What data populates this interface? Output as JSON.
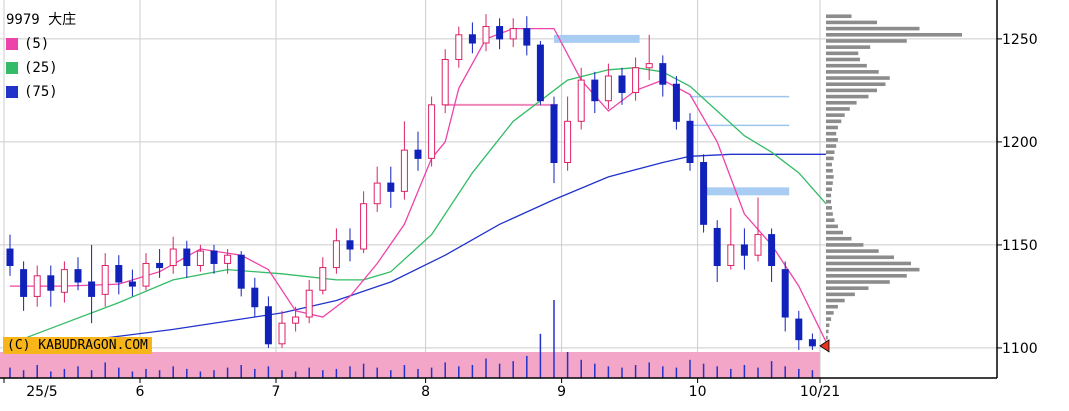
{
  "title": "9979 大庄",
  "legend": [
    {
      "label": "(5)",
      "color": "#ee44aa"
    },
    {
      "label": "(25)",
      "color": "#33bb66"
    },
    {
      "label": "(75)",
      "color": "#2233cc"
    }
  ],
  "copyright": "(C) KABUDRAGON.COM",
  "colors": {
    "up": "#dd2266",
    "down": "#1122bb",
    "ma5": "#ee44aa",
    "ma25": "#33bb66",
    "ma75": "#2233cc",
    "grid": "#cccccc",
    "volume": "#2233cc",
    "volume_band": "#f4a6c8",
    "profile": "#8c8c8c",
    "marker": "#e8321e"
  },
  "chart_data": {
    "type": "candlestick",
    "y_ticks": [
      "1100",
      "1150",
      "1200",
      "1250"
    ],
    "ylim": [
      1082,
      1265
    ],
    "x_tick_labels": [
      "25/5",
      "6",
      "7",
      "8",
      "9",
      "10",
      "10/21"
    ],
    "x_tick_days": [
      0,
      10,
      20,
      31,
      41,
      51,
      60
    ],
    "sessions": 60,
    "last_close": 1101,
    "marker_price": 1101,
    "ma5": [
      [
        0,
        1130
      ],
      [
        4,
        1130
      ],
      [
        8,
        1131
      ],
      [
        11,
        1137
      ],
      [
        14,
        1148
      ],
      [
        17,
        1145
      ],
      [
        19,
        1138
      ],
      [
        21,
        1118
      ],
      [
        23,
        1115
      ],
      [
        25,
        1125
      ],
      [
        27,
        1141
      ],
      [
        29,
        1160
      ],
      [
        31,
        1192
      ],
      [
        32,
        1200
      ],
      [
        33,
        1226
      ],
      [
        35,
        1250
      ],
      [
        37,
        1255
      ],
      [
        40,
        1255
      ],
      [
        42,
        1230
      ],
      [
        44,
        1215
      ],
      [
        46,
        1225
      ],
      [
        48,
        1230
      ],
      [
        50,
        1223
      ],
      [
        52,
        1200
      ],
      [
        54,
        1165
      ],
      [
        56,
        1150
      ],
      [
        58,
        1130
      ],
      [
        60,
        1103
      ]
    ],
    "ma25": [
      [
        0,
        1102
      ],
      [
        4,
        1112
      ],
      [
        8,
        1122
      ],
      [
        12,
        1133
      ],
      [
        16,
        1138
      ],
      [
        20,
        1136
      ],
      [
        24,
        1133
      ],
      [
        26,
        1133
      ],
      [
        28,
        1137
      ],
      [
        31,
        1155
      ],
      [
        34,
        1185
      ],
      [
        37,
        1210
      ],
      [
        39,
        1220
      ],
      [
        41,
        1230
      ],
      [
        44,
        1235
      ],
      [
        46,
        1236
      ],
      [
        48,
        1234
      ],
      [
        50,
        1227
      ],
      [
        52,
        1215
      ],
      [
        54,
        1203
      ],
      [
        56,
        1195
      ],
      [
        58,
        1185
      ],
      [
        60,
        1170
      ]
    ],
    "ma75": [
      [
        0,
        1098
      ],
      [
        6,
        1104
      ],
      [
        12,
        1109
      ],
      [
        16,
        1113
      ],
      [
        20,
        1117
      ],
      [
        24,
        1123
      ],
      [
        28,
        1132
      ],
      [
        32,
        1145
      ],
      [
        36,
        1160
      ],
      [
        40,
        1172
      ],
      [
        44,
        1183
      ],
      [
        48,
        1190
      ],
      [
        50,
        1193
      ],
      [
        53,
        1194
      ],
      [
        56,
        1194
      ],
      [
        60,
        1194
      ]
    ],
    "candles": [
      {
        "o": 1148,
        "c": 1140,
        "h": 1155,
        "l": 1135
      },
      {
        "o": 1138,
        "c": 1125,
        "h": 1142,
        "l": 1118
      },
      {
        "o": 1125,
        "c": 1135,
        "h": 1140,
        "l": 1120
      },
      {
        "o": 1135,
        "c": 1128,
        "h": 1140,
        "l": 1120
      },
      {
        "o": 1127,
        "c": 1138,
        "h": 1142,
        "l": 1122
      },
      {
        "o": 1138,
        "c": 1132,
        "h": 1144,
        "l": 1128
      },
      {
        "o": 1132,
        "c": 1125,
        "h": 1150,
        "l": 1112
      },
      {
        "o": 1126,
        "c": 1140,
        "h": 1146,
        "l": 1120
      },
      {
        "o": 1140,
        "c": 1132,
        "h": 1145,
        "l": 1126
      },
      {
        "o": 1132,
        "c": 1130,
        "h": 1138,
        "l": 1125
      },
      {
        "o": 1130,
        "c": 1141,
        "h": 1146,
        "l": 1128
      },
      {
        "o": 1141,
        "c": 1139,
        "h": 1148,
        "l": 1134
      },
      {
        "o": 1140,
        "c": 1148,
        "h": 1154,
        "l": 1136
      },
      {
        "o": 1148,
        "c": 1140,
        "h": 1152,
        "l": 1134
      },
      {
        "o": 1140,
        "c": 1147,
        "h": 1150,
        "l": 1137
      },
      {
        "o": 1147,
        "c": 1141,
        "h": 1150,
        "l": 1136
      },
      {
        "o": 1141,
        "c": 1145,
        "h": 1148,
        "l": 1136
      },
      {
        "o": 1145,
        "c": 1129,
        "h": 1147,
        "l": 1125
      },
      {
        "o": 1129,
        "c": 1120,
        "h": 1134,
        "l": 1115
      },
      {
        "o": 1120,
        "c": 1102,
        "h": 1125,
        "l": 1100
      },
      {
        "o": 1102,
        "c": 1112,
        "h": 1118,
        "l": 1100
      },
      {
        "o": 1112,
        "c": 1115,
        "h": 1120,
        "l": 1108
      },
      {
        "o": 1115,
        "c": 1128,
        "h": 1133,
        "l": 1112
      },
      {
        "o": 1128,
        "c": 1139,
        "h": 1144,
        "l": 1126
      },
      {
        "o": 1139,
        "c": 1152,
        "h": 1158,
        "l": 1136
      },
      {
        "o": 1152,
        "c": 1148,
        "h": 1158,
        "l": 1142
      },
      {
        "o": 1148,
        "c": 1170,
        "h": 1176,
        "l": 1146
      },
      {
        "o": 1170,
        "c": 1180,
        "h": 1188,
        "l": 1166
      },
      {
        "o": 1180,
        "c": 1176,
        "h": 1188,
        "l": 1168
      },
      {
        "o": 1176,
        "c": 1196,
        "h": 1210,
        "l": 1172
      },
      {
        "o": 1196,
        "c": 1192,
        "h": 1205,
        "l": 1186
      },
      {
        "o": 1192,
        "c": 1218,
        "h": 1222,
        "l": 1188
      },
      {
        "o": 1218,
        "c": 1240,
        "h": 1245,
        "l": 1214
      },
      {
        "o": 1240,
        "c": 1252,
        "h": 1256,
        "l": 1236
      },
      {
        "o": 1252,
        "c": 1248,
        "h": 1258,
        "l": 1243
      },
      {
        "o": 1248,
        "c": 1256,
        "h": 1262,
        "l": 1244
      },
      {
        "o": 1256,
        "c": 1250,
        "h": 1260,
        "l": 1245
      },
      {
        "o": 1250,
        "c": 1255,
        "h": 1260,
        "l": 1246
      },
      {
        "o": 1255,
        "c": 1247,
        "h": 1261,
        "l": 1242
      },
      {
        "o": 1247,
        "c": 1220,
        "h": 1249,
        "l": 1218
      },
      {
        "o": 1218,
        "c": 1190,
        "h": 1222,
        "l": 1180
      },
      {
        "o": 1190,
        "c": 1210,
        "h": 1222,
        "l": 1186
      },
      {
        "o": 1210,
        "c": 1230,
        "h": 1236,
        "l": 1206
      },
      {
        "o": 1230,
        "c": 1220,
        "h": 1234,
        "l": 1214
      },
      {
        "o": 1220,
        "c": 1232,
        "h": 1238,
        "l": 1216
      },
      {
        "o": 1232,
        "c": 1224,
        "h": 1236,
        "l": 1218
      },
      {
        "o": 1224,
        "c": 1236,
        "h": 1241,
        "l": 1220
      },
      {
        "o": 1236,
        "c": 1238,
        "h": 1252,
        "l": 1230
      },
      {
        "o": 1238,
        "c": 1228,
        "h": 1242,
        "l": 1222
      },
      {
        "o": 1228,
        "c": 1210,
        "h": 1232,
        "l": 1206
      },
      {
        "o": 1210,
        "c": 1190,
        "h": 1214,
        "l": 1186
      },
      {
        "o": 1190,
        "c": 1160,
        "h": 1194,
        "l": 1156
      },
      {
        "o": 1158,
        "c": 1140,
        "h": 1162,
        "l": 1132
      },
      {
        "o": 1140,
        "c": 1150,
        "h": 1168,
        "l": 1138
      },
      {
        "o": 1150,
        "c": 1145,
        "h": 1158,
        "l": 1138
      },
      {
        "o": 1145,
        "c": 1155,
        "h": 1173,
        "l": 1142
      },
      {
        "o": 1155,
        "c": 1140,
        "h": 1158,
        "l": 1132
      },
      {
        "o": 1138,
        "c": 1115,
        "h": 1142,
        "l": 1108
      },
      {
        "o": 1114,
        "c": 1104,
        "h": 1118,
        "l": 1099
      },
      {
        "o": 1104,
        "c": 1101,
        "h": 1107,
        "l": 1099
      }
    ],
    "volume": [
      8,
      6,
      10,
      5,
      7,
      9,
      6,
      12,
      8,
      5,
      7,
      6,
      9,
      7,
      5,
      6,
      8,
      10,
      7,
      9,
      6,
      5,
      8,
      6,
      7,
      9,
      11,
      8,
      6,
      10,
      7,
      8,
      12,
      9,
      10,
      15,
      11,
      13,
      17,
      34,
      60,
      20,
      14,
      11,
      9,
      8,
      10,
      12,
      9,
      8,
      14,
      11,
      9,
      7,
      10,
      8,
      13,
      9,
      7,
      6
    ],
    "volume_profile": [
      [
        1102,
        1
      ],
      [
        1105,
        2
      ],
      [
        1108,
        3
      ],
      [
        1111,
        4
      ],
      [
        1114,
        6
      ],
      [
        1117,
        9
      ],
      [
        1120,
        14
      ],
      [
        1123,
        22
      ],
      [
        1126,
        34
      ],
      [
        1129,
        50
      ],
      [
        1132,
        75
      ],
      [
        1135,
        95
      ],
      [
        1138,
        110
      ],
      [
        1141,
        100
      ],
      [
        1144,
        80
      ],
      [
        1147,
        62
      ],
      [
        1150,
        44
      ],
      [
        1153,
        30
      ],
      [
        1156,
        20
      ],
      [
        1159,
        14
      ],
      [
        1162,
        10
      ],
      [
        1165,
        8
      ],
      [
        1168,
        7
      ],
      [
        1171,
        6
      ],
      [
        1174,
        6
      ],
      [
        1177,
        7
      ],
      [
        1180,
        8
      ],
      [
        1183,
        9
      ],
      [
        1186,
        8
      ],
      [
        1189,
        7
      ],
      [
        1192,
        9
      ],
      [
        1195,
        10
      ],
      [
        1198,
        12
      ],
      [
        1201,
        14
      ],
      [
        1204,
        12
      ],
      [
        1207,
        14
      ],
      [
        1210,
        18
      ],
      [
        1213,
        22
      ],
      [
        1216,
        28
      ],
      [
        1219,
        36
      ],
      [
        1222,
        50
      ],
      [
        1225,
        60
      ],
      [
        1228,
        70
      ],
      [
        1231,
        75
      ],
      [
        1234,
        62
      ],
      [
        1237,
        48
      ],
      [
        1240,
        40
      ],
      [
        1243,
        38
      ],
      [
        1246,
        52
      ],
      [
        1249,
        95
      ],
      [
        1252,
        160
      ],
      [
        1255,
        110
      ],
      [
        1258,
        60
      ],
      [
        1261,
        30
      ]
    ],
    "resistance_levels": [
      {
        "price": 1250,
        "start": 40,
        "end": 46,
        "band": true
      },
      {
        "price": 1222,
        "start": 50,
        "end": 57,
        "band": false
      },
      {
        "price": 1208,
        "start": 50,
        "end": 57,
        "band": false
      },
      {
        "price": 1176,
        "start": 51,
        "end": 57,
        "band": true
      },
      {
        "price": 1218,
        "start": 32,
        "end": 40,
        "band": false,
        "pink": true
      }
    ]
  }
}
